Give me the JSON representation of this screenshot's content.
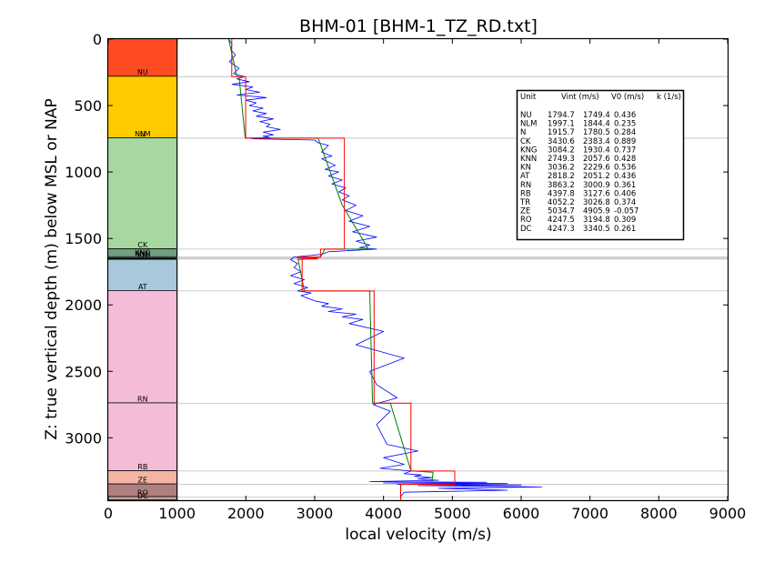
{
  "chart_data": {
    "type": "line",
    "title": "BHM-01 [BHM-1_TZ_RD.txt]",
    "xlabel": "local velocity (m/s)",
    "ylabel": "Z: true vertical depth (m) below MSL or NAP",
    "xlim": [
      0,
      9000
    ],
    "ylim": [
      3470,
      0
    ],
    "x_ticks": [
      "0",
      "1000",
      "2000",
      "3000",
      "4000",
      "5000",
      "6000",
      "7000",
      "8000",
      "9000"
    ],
    "y_ticks": [
      "0",
      "500",
      "1000",
      "1500",
      "2000",
      "2500",
      "3000"
    ],
    "grid": false,
    "colors": {
      "log": "#0000ff",
      "interval": "#ff0000",
      "model": "#008000"
    },
    "units": [
      {
        "name": "NU",
        "top": 0,
        "base": 282,
        "color": "#ff4b24"
      },
      {
        "name": "NLM",
        "top": 282,
        "base": 745,
        "color": "#ffcc00"
      },
      {
        "name": "N",
        "top": 745,
        "base": 745,
        "color": "#ffe066"
      },
      {
        "name": "CK",
        "top": 745,
        "base": 1580,
        "color": "#a6d8a0"
      },
      {
        "name": "KNG",
        "top": 1580,
        "base": 1640,
        "color": "#6f9f7f"
      },
      {
        "name": "KNN",
        "top": 1640,
        "base": 1648,
        "color": "#7fb8a0"
      },
      {
        "name": "KN",
        "top": 1648,
        "base": 1655,
        "color": "#8cc3b0"
      },
      {
        "name": "AT",
        "top": 1660,
        "base": 1895,
        "color": "#a8c8dc"
      },
      {
        "name": "RN",
        "top": 1895,
        "base": 2740,
        "color": "#f4bcd8"
      },
      {
        "name": "RB",
        "top": 2740,
        "base": 3250,
        "color": "#f4bcd8"
      },
      {
        "name": "ZE",
        "top": 3250,
        "base": 3350,
        "color": "#f4b4a4"
      },
      {
        "name": "RO",
        "top": 3350,
        "base": 3445,
        "color": "#b08080"
      },
      {
        "name": "DC",
        "top": 3445,
        "base": 3470,
        "color": "#c4a09c"
      }
    ],
    "table": {
      "header": [
        "Unit",
        "Vint (m/s)",
        "V0 (m/s)",
        "k (1/s)"
      ],
      "rows": [
        [
          "NU",
          "1794.7",
          "1749.4",
          "0.436"
        ],
        [
          "NLM",
          "1997.1",
          "1844.4",
          "0.235"
        ],
        [
          "N",
          "1915.7",
          "1780.5",
          "0.284"
        ],
        [
          "CK",
          "3430.6",
          "2383.4",
          "0.889"
        ],
        [
          "KNG",
          "3084.2",
          "1930.4",
          "0.737"
        ],
        [
          "KNN",
          "2749.3",
          "2057.6",
          "0.428"
        ],
        [
          "KN",
          "3036.2",
          "2229.6",
          "0.536"
        ],
        [
          "AT",
          "2818.2",
          "2051.2",
          "0.436"
        ],
        [
          "RN",
          "3863.2",
          "3000.9",
          "0.361"
        ],
        [
          "RB",
          "4397.8",
          "3127.6",
          "0.406"
        ],
        [
          "TR",
          "4052.2",
          "3026.8",
          "0.374"
        ],
        [
          "ZE",
          "5034.7",
          "4905.9",
          "-0.057"
        ],
        [
          "RO",
          "4247.5",
          "3194.8",
          "0.309"
        ],
        [
          "DC",
          "4247.3",
          "3340.5",
          "0.261"
        ]
      ]
    },
    "series": [
      {
        "x": [
          1794.7,
          1794.7,
          1997.1,
          1997.1,
          3430.6,
          3430.6,
          3084.2,
          3084.2,
          2749.3,
          2749.3,
          3036.2,
          3036.2,
          2818.2,
          2818.2,
          3863.2,
          3863.2,
          4397.8,
          4397.8,
          5034.7,
          5034.7,
          4247.5,
          4247.5,
          4247.3,
          4247.3
        ],
        "y": [
          0,
          282,
          282,
          745,
          745,
          1580,
          1580,
          1640,
          1640,
          1648,
          1648,
          1655,
          1655,
          1895,
          1895,
          2740,
          2740,
          3250,
          3250,
          3350,
          3350,
          3445,
          3445,
          3470
        ]
      },
      {
        "x": [
          1750,
          1870,
          1900,
          1990,
          2000,
          3050,
          3400,
          3780,
          3150,
          3080,
          2760,
          2850,
          2900,
          3800,
          3840,
          4100,
          4400,
          4430,
          4720,
          4700,
          4250,
          4250
        ],
        "y": [
          0,
          282,
          282,
          745,
          745,
          745,
          1250,
          1580,
          1580,
          1640,
          1660,
          1895,
          1895,
          1895,
          2740,
          2740,
          3250,
          3250,
          3260,
          3350,
          3350,
          3470
        ]
      },
      {
        "x": [
          1750,
          1800,
          1780,
          1850,
          1760,
          1900,
          1820,
          1980,
          1870,
          2050,
          1800,
          2100,
          2000,
          2200,
          1870,
          2300,
          2000,
          2150,
          2050,
          2250,
          2100,
          2300,
          2150,
          2400,
          2200,
          2350,
          2300,
          2500,
          2250,
          2400,
          2250,
          2350,
          2050,
          2100,
          3000,
          3050,
          3200,
          3100,
          3250,
          3100,
          3300,
          3150,
          3350,
          3200,
          3400,
          3250,
          3450,
          3350,
          3500,
          3400,
          3600,
          3450,
          3700,
          3500,
          3800,
          3550,
          3900,
          3600,
          3800,
          3650,
          3900,
          3200,
          3100,
          2700,
          2650,
          2750,
          2700,
          2800,
          2650,
          2850,
          2700,
          2900,
          2750,
          2950,
          2800,
          2900,
          3000,
          3200,
          3100,
          3400,
          3200,
          3600,
          3400,
          3700,
          3500,
          4000,
          3600,
          4300,
          3800,
          3900,
          4200,
          3850,
          4100,
          3900,
          4000,
          4050,
          4500,
          4000,
          4300,
          3950,
          4400,
          4300,
          4550,
          4450,
          4700,
          4500,
          4800,
          3800,
          5500,
          4000,
          5800,
          4200,
          6000,
          4500,
          6300,
          4800,
          5800,
          4300,
          4250,
          4250
        ],
        "y": [
          0,
          40,
          80,
          120,
          170,
          220,
          260,
          282,
          300,
          320,
          340,
          360,
          380,
          400,
          420,
          440,
          460,
          480,
          500,
          520,
          540,
          560,
          580,
          600,
          620,
          640,
          660,
          680,
          700,
          720,
          730,
          740,
          745,
          750,
          760,
          780,
          800,
          850,
          880,
          900,
          950,
          980,
          1000,
          1030,
          1060,
          1090,
          1120,
          1150,
          1180,
          1210,
          1250,
          1290,
          1330,
          1370,
          1410,
          1450,
          1490,
          1520,
          1550,
          1570,
          1580,
          1600,
          1620,
          1640,
          1660,
          1690,
          1720,
          1750,
          1780,
          1810,
          1840,
          1870,
          1895,
          1910,
          1930,
          1950,
          1970,
          1990,
          2010,
          2030,
          2050,
          2070,
          2090,
          2110,
          2140,
          2200,
          2300,
          2400,
          2500,
          2600,
          2700,
          2750,
          2800,
          2900,
          3000,
          3050,
          3100,
          3150,
          3200,
          3230,
          3250,
          3270,
          3280,
          3290,
          3300,
          3310,
          3320,
          3330,
          3335,
          3340,
          3345,
          3350,
          3355,
          3360,
          3370,
          3380,
          3395,
          3410,
          3440,
          3470
        ]
      }
    ]
  }
}
